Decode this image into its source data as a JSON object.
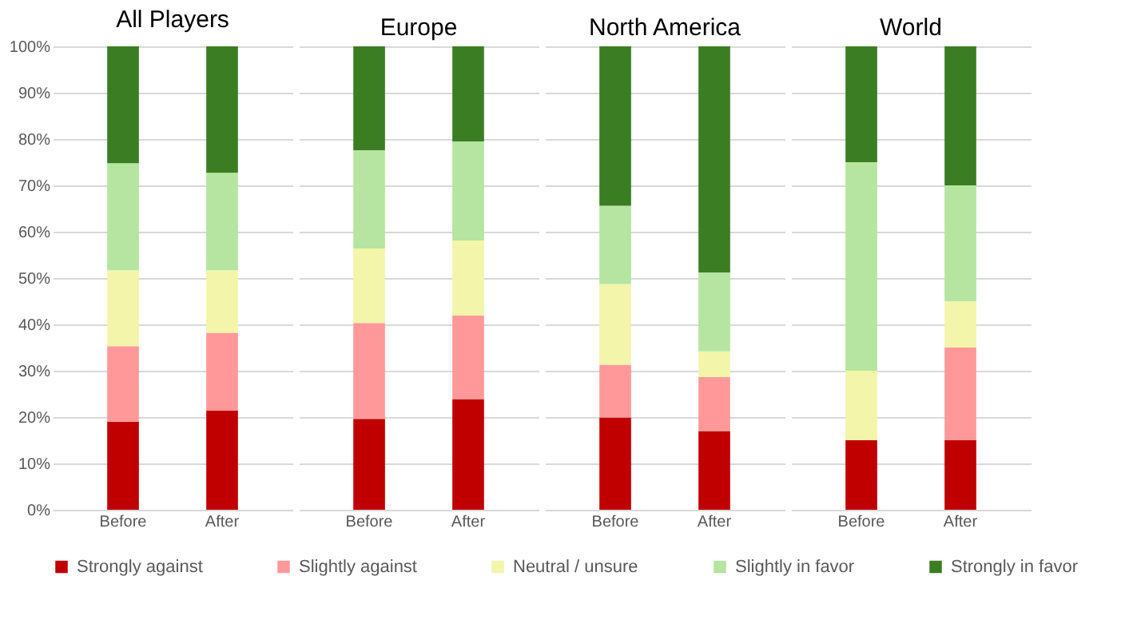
{
  "chart_data": [
    {
      "type": "bar",
      "title": "All Players",
      "categories": [
        "Before",
        "After"
      ],
      "stacked": true,
      "legend": "bottom",
      "grid": "y",
      "ylim": [
        0,
        100
      ],
      "yticks": [
        {
          "value": 0,
          "label": "0%"
        },
        {
          "value": 10,
          "label": "10%"
        },
        {
          "value": 20,
          "label": "20%"
        },
        {
          "value": 30,
          "label": "30%"
        },
        {
          "value": 40,
          "label": "40%"
        },
        {
          "value": 50,
          "label": "50%"
        },
        {
          "value": 60,
          "label": "60%"
        },
        {
          "value": 70,
          "label": "70%"
        },
        {
          "value": 80,
          "label": "80%"
        },
        {
          "value": 90,
          "label": "90%"
        },
        {
          "value": 100,
          "label": "100%"
        }
      ],
      "series": [
        {
          "name": "Strongly against",
          "color": "#c00000",
          "values": [
            19.0,
            21.4
          ]
        },
        {
          "name": "Slightly against",
          "color": "#ff9999",
          "values": [
            16.3,
            16.8
          ]
        },
        {
          "name": "Neutral / unsure",
          "color": "#f2f5aa",
          "values": [
            16.4,
            13.5
          ]
        },
        {
          "name": "Slightly in favor",
          "color": "#b5e5a0",
          "values": [
            23.1,
            21.0
          ]
        },
        {
          "name": "Strongly in favor",
          "color": "#3b7d23",
          "values": [
            25.2,
            27.3
          ]
        }
      ]
    },
    {
      "type": "bar",
      "title": "Europe",
      "categories": [
        "Before",
        "After"
      ],
      "stacked": true,
      "grid": "y",
      "tick_labels": "x",
      "ylim": [
        0,
        100
      ],
      "series": [
        {
          "color": "#c00000",
          "values": [
            19.6,
            23.9
          ]
        },
        {
          "color": "#ff9999",
          "values": [
            20.7,
            18.0
          ]
        },
        {
          "color": "#f2f5aa",
          "values": [
            16.1,
            16.2
          ]
        },
        {
          "color": "#b5e5a0",
          "values": [
            21.2,
            21.4
          ]
        },
        {
          "color": "#3b7d23",
          "values": [
            22.4,
            20.5
          ]
        }
      ]
    },
    {
      "type": "bar",
      "title": "North America",
      "categories": [
        "Before",
        "After"
      ],
      "stacked": true,
      "grid": "y",
      "tick_labels": "x",
      "ylim": [
        0,
        100
      ],
      "series": [
        {
          "color": "#c00000",
          "values": [
            19.9,
            17.0
          ]
        },
        {
          "color": "#ff9999",
          "values": [
            11.4,
            11.6
          ]
        },
        {
          "color": "#f2f5aa",
          "values": [
            17.4,
            5.6
          ]
        },
        {
          "color": "#b5e5a0",
          "values": [
            16.9,
            17.0
          ]
        },
        {
          "color": "#3b7d23",
          "values": [
            34.4,
            48.8
          ]
        }
      ]
    },
    {
      "type": "bar",
      "title": "World",
      "categories": [
        "Before",
        "After"
      ],
      "stacked": true,
      "grid": "y",
      "tick_labels": "x",
      "ylim": [
        0,
        100
      ],
      "series": [
        {
          "color": "#c00000",
          "values": [
            15.0,
            15.0
          ]
        },
        {
          "color": "#ff9999",
          "values": [
            0,
            20.0
          ]
        },
        {
          "color": "#f2f5aa",
          "values": [
            15.0,
            10.0
          ]
        },
        {
          "color": "#b5e5a0",
          "values": [
            45.0,
            25.0
          ]
        },
        {
          "color": "#3b7d23",
          "values": [
            25.0,
            30.0
          ]
        }
      ]
    }
  ]
}
